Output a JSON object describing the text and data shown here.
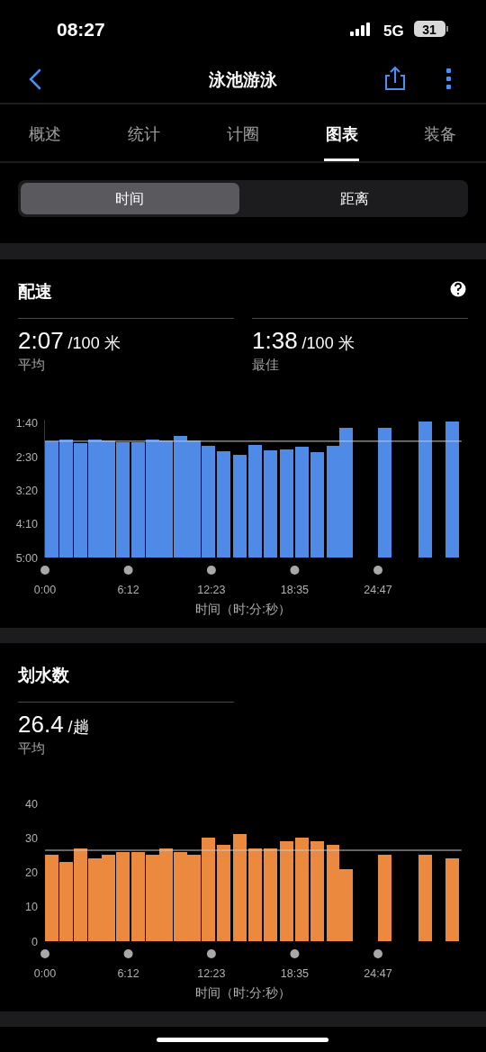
{
  "chart_data": [
    {
      "type": "other",
      "title": "泳池游泳",
      "annotations": [
        "08:27",
        "5G",
        "31",
        "概述",
        "统计",
        "计圈",
        "图表",
        "装备",
        "时间",
        "距离"
      ]
    },
    {
      "type": "bar",
      "title": "配速",
      "annotations": [
        "2:07",
        "/100 米",
        "平均",
        "1:38",
        "/100 米",
        "最佳"
      ],
      "xlabel": "时间（时:分:秒）",
      "color": "#4f8ae6",
      "x": [
        32,
        95,
        159,
        222,
        285,
        349,
        415,
        479,
        542,
        603,
        664,
        728,
        797,
        871,
        940,
        1007,
        1078,
        1147,
        1217,
        1286,
        1346,
        1518,
        1697,
        1817
      ],
      "base": [
        300,
        300,
        300,
        300,
        300,
        300,
        300,
        300,
        300,
        300,
        300,
        300,
        300,
        300,
        300,
        300,
        300,
        300,
        300,
        300,
        300,
        300,
        300,
        300
      ],
      "values": [
        -173,
        -176,
        -170,
        -175,
        -174,
        -171,
        -171,
        -175,
        -174,
        -181,
        -174,
        -166,
        -158,
        -153,
        -167,
        -160,
        -161,
        -165,
        -157,
        -166,
        -193,
        -193,
        -202,
        -202
      ],
      "xlim": [
        0,
        1860
      ],
      "xticks": [
        {
          "value": 0,
          "label": "0:00"
        },
        {
          "value": 372,
          "label": "6:12"
        },
        {
          "value": 743,
          "label": "12:23"
        },
        {
          "value": 1115,
          "label": "18:35"
        },
        {
          "value": 1487,
          "label": "24:47"
        }
      ],
      "ylim": [
        300,
        95
      ],
      "yticks": [
        {
          "value": 100,
          "label": "1:40"
        },
        {
          "value": 150,
          "label": "2:30"
        },
        {
          "value": 200,
          "label": "3:20"
        },
        {
          "value": 250,
          "label": "4:10"
        },
        {
          "value": 300,
          "label": "5:00"
        }
      ],
      "ref_lines": [
        {
          "axis": "y",
          "value": 127,
          "color": "#c8c8c8"
        }
      ]
    },
    {
      "type": "bar",
      "title": "划水数",
      "annotations": [
        "26.4",
        "/趟",
        "平均"
      ],
      "xlabel": "时间（时:分:秒）",
      "color": "#eb8a3e",
      "x": [
        32,
        95,
        159,
        222,
        285,
        349,
        415,
        479,
        542,
        603,
        664,
        728,
        797,
        871,
        940,
        1007,
        1078,
        1147,
        1217,
        1286,
        1346,
        1518,
        1697,
        1817
      ],
      "values": [
        25,
        23,
        27,
        24,
        25,
        26,
        26,
        25,
        27,
        26,
        25,
        30,
        28,
        31,
        27,
        27,
        29,
        30,
        29,
        28,
        21,
        25,
        25,
        24
      ],
      "xlim": [
        0,
        1860
      ],
      "xticks": [
        {
          "value": 0,
          "label": "0:00"
        },
        {
          "value": 372,
          "label": "6:12"
        },
        {
          "value": 743,
          "label": "12:23"
        },
        {
          "value": 1115,
          "label": "18:35"
        },
        {
          "value": 1487,
          "label": "24:47"
        }
      ],
      "ylim": [
        0,
        40
      ],
      "yticks": [
        0,
        10,
        20,
        30,
        40
      ],
      "ref_lines": [
        {
          "axis": "y",
          "value": 26.4,
          "color": "#c8c8c8"
        }
      ]
    }
  ]
}
